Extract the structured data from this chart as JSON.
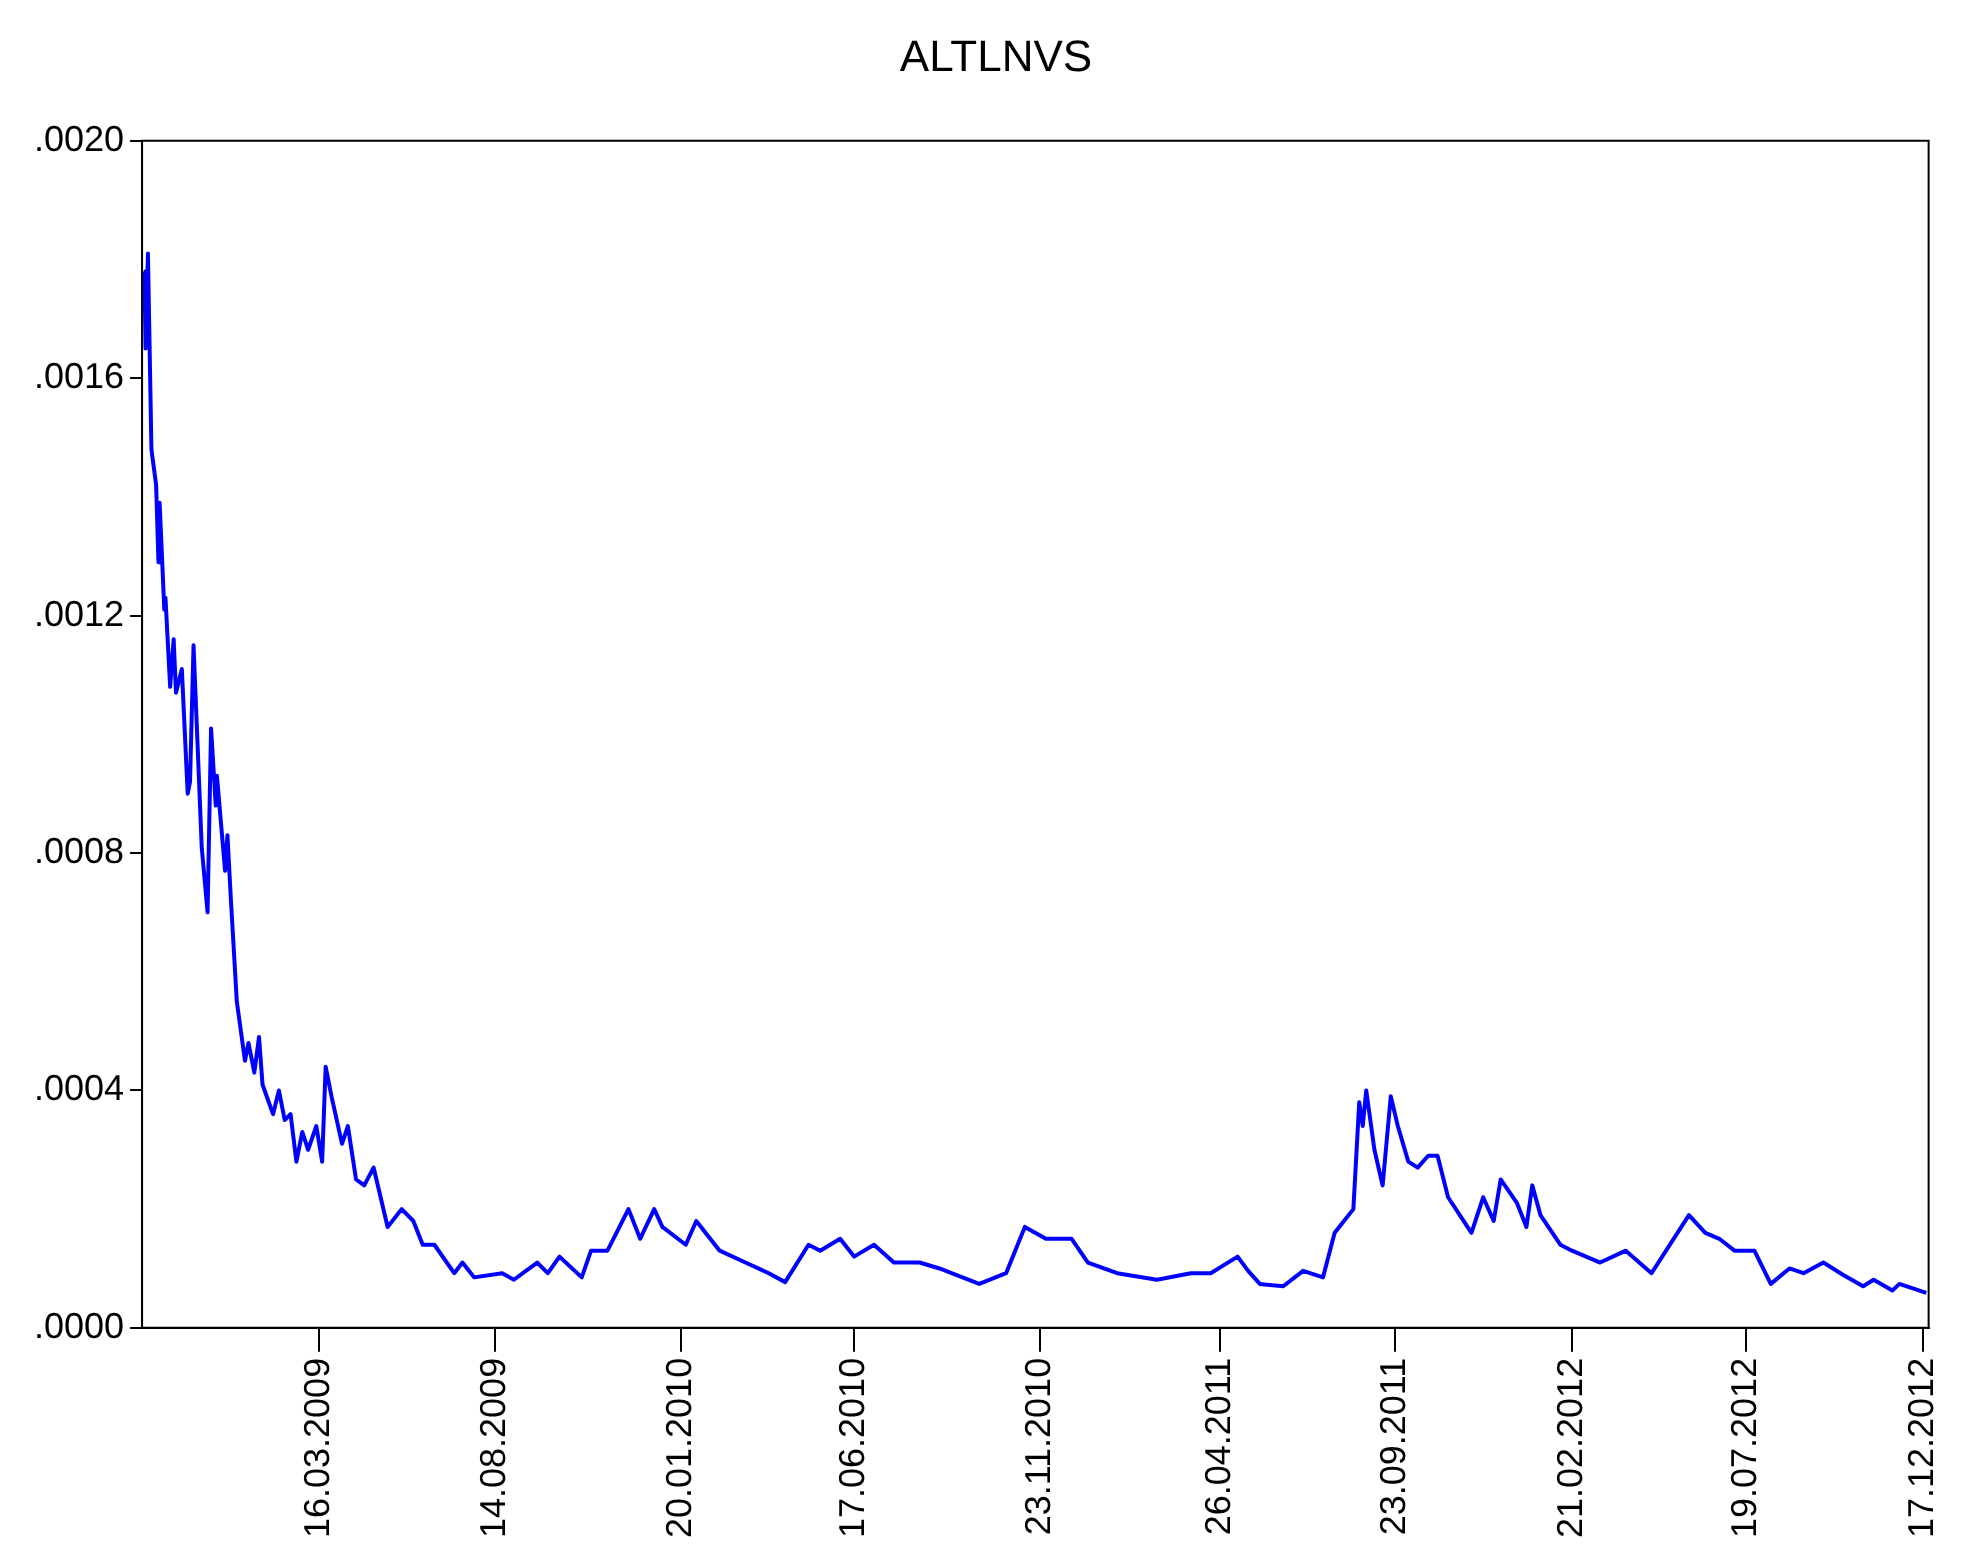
{
  "chart_data": {
    "type": "line",
    "title": "ALTLNVS",
    "xlim": [
      "2008-10-16",
      "2012-12-22"
    ],
    "xticks": [
      {
        "value": "2009-03-16",
        "label": "16.03.2009"
      },
      {
        "value": "2009-08-14",
        "label": "14.08.2009"
      },
      {
        "value": "2010-01-20",
        "label": "20.01.2010"
      },
      {
        "value": "2010-06-17",
        "label": "17.06.2010"
      },
      {
        "value": "2010-11-23",
        "label": "23.11.2010"
      },
      {
        "value": "2011-04-26",
        "label": "26.04.2011"
      },
      {
        "value": "2011-09-23",
        "label": "23.09.2011"
      },
      {
        "value": "2012-02-21",
        "label": "21.02.2012"
      },
      {
        "value": "2012-07-19",
        "label": "19.07.2012"
      },
      {
        "value": "2012-12-17",
        "label": "17.12.2012"
      }
    ],
    "ylim": [
      0,
      0.002
    ],
    "yticks": [
      {
        "value": 0,
        "label": ".0000"
      },
      {
        "value": 0.0004,
        "label": ".0004"
      },
      {
        "value": 0.0008,
        "label": ".0008"
      },
      {
        "value": 0.0012,
        "label": ".0012"
      },
      {
        "value": 0.0016,
        "label": ".0016"
      },
      {
        "value": 0.002,
        "label": ".0020"
      }
    ],
    "grid": false,
    "legend": false,
    "marker": "none",
    "line_style": "solid",
    "series": [
      {
        "color": "#0000ff",
        "x": [
          "2008-10-18",
          "2008-10-19",
          "2008-10-21",
          "2008-10-24",
          "2008-10-28",
          "2008-10-30",
          "2008-10-31",
          "2008-11-04",
          "2008-11-05",
          "2008-11-09",
          "2008-11-12",
          "2008-11-14",
          "2008-11-19",
          "2008-11-24",
          "2008-11-26",
          "2008-11-29",
          "2008-12-06",
          "2008-12-11",
          "2008-12-14",
          "2008-12-18",
          "2008-12-19",
          "2008-12-26",
          "2008-12-28",
          "2008-12-31",
          "2009-01-05",
          "2009-01-12",
          "2009-01-15",
          "2009-01-20",
          "2009-01-24",
          "2009-01-27",
          "2009-02-05",
          "2009-02-10",
          "2009-02-15",
          "2009-02-20",
          "2009-02-25",
          "2009-03-02",
          "2009-03-07",
          "2009-03-14",
          "2009-03-19",
          "2009-03-22",
          "2009-03-27",
          "2009-04-05",
          "2009-04-10",
          "2009-04-17",
          "2009-04-24",
          "2009-05-02",
          "2009-05-14",
          "2009-05-26",
          "2009-06-05",
          "2009-06-13",
          "2009-06-23",
          "2009-07-10",
          "2009-07-17",
          "2009-07-27",
          "2009-08-20",
          "2009-08-30",
          "2009-09-19",
          "2009-09-28",
          "2009-10-08",
          "2009-10-27",
          "2009-11-04",
          "2009-11-18",
          "2009-12-06",
          "2009-12-16",
          "2009-12-28",
          "2010-01-04",
          "2010-01-24",
          "2010-02-02",
          "2010-02-22",
          "2010-03-16",
          "2010-04-05",
          "2010-04-19",
          "2010-05-09",
          "2010-05-19",
          "2010-06-05",
          "2010-06-17",
          "2010-07-04",
          "2010-07-21",
          "2010-08-12",
          "2010-08-29",
          "2010-10-02",
          "2010-10-25",
          "2010-11-10",
          "2010-11-28",
          "2010-12-20",
          "2011-01-03",
          "2011-01-28",
          "2011-03-03",
          "2011-04-01",
          "2011-04-18",
          "2011-05-11",
          "2011-05-20",
          "2011-05-30",
          "2011-06-19",
          "2011-07-06",
          "2011-07-23",
          "2011-08-02",
          "2011-08-18",
          "2011-08-23",
          "2011-08-26",
          "2011-08-29",
          "2011-09-05",
          "2011-09-12",
          "2011-09-19",
          "2011-09-25",
          "2011-10-04",
          "2011-10-12",
          "2011-10-21",
          "2011-10-29",
          "2011-11-07",
          "2011-11-27",
          "2011-12-07",
          "2011-12-16",
          "2011-12-22",
          "2012-01-05",
          "2012-01-13",
          "2012-01-18",
          "2012-01-25",
          "2012-02-11",
          "2012-02-21",
          "2012-03-16",
          "2012-04-07",
          "2012-04-29",
          "2012-05-31",
          "2012-06-14",
          "2012-06-26",
          "2012-07-09",
          "2012-07-26",
          "2012-08-09",
          "2012-08-25",
          "2012-09-06",
          "2012-09-23",
          "2012-10-10",
          "2012-10-27",
          "2012-11-05",
          "2012-11-21",
          "2012-11-27",
          "2012-12-20"
        ],
        "values": [
          0.00178,
          0.00165,
          0.00181,
          0.00148,
          0.00142,
          0.00129,
          0.00139,
          0.00121,
          0.00123,
          0.00108,
          0.00116,
          0.00107,
          0.00111,
          0.0009,
          0.00092,
          0.00115,
          0.00081,
          0.0007,
          0.00101,
          0.00088,
          0.00093,
          0.00077,
          0.00083,
          0.00072,
          0.00055,
          0.00045,
          0.00048,
          0.00043,
          0.00049,
          0.00041,
          0.00036,
          0.0004,
          0.00035,
          0.00036,
          0.00028,
          0.00033,
          0.0003,
          0.00034,
          0.00028,
          0.00044,
          0.00039,
          0.00031,
          0.00034,
          0.00025,
          0.00024,
          0.00027,
          0.00017,
          0.0002,
          0.00018,
          0.00014,
          0.00014,
          9.2e-05,
          0.00011,
          8.5e-05,
          9.2e-05,
          8.1e-05,
          0.00011,
          9.2e-05,
          0.00012,
          8.5e-05,
          0.00013,
          0.00013,
          0.0002,
          0.00015,
          0.0002,
          0.00017,
          0.00014,
          0.00018,
          0.00013,
          0.00011,
          9.2e-05,
          7.7e-05,
          0.00014,
          0.00013,
          0.00015,
          0.00012,
          0.00014,
          0.00011,
          0.00011,
          0.0001,
          7.4e-05,
          9.2e-05,
          0.00017,
          0.00015,
          0.00015,
          0.00011,
          9.2e-05,
          8.1e-05,
          9.2e-05,
          9.2e-05,
          0.00012,
          9.6e-05,
          7.4e-05,
          7e-05,
          9.6e-05,
          8.5e-05,
          0.00016,
          0.0002,
          0.00038,
          0.00034,
          0.0004,
          0.0003,
          0.00024,
          0.00039,
          0.00034,
          0.00028,
          0.00027,
          0.00029,
          0.00029,
          0.00022,
          0.00016,
          0.00022,
          0.00018,
          0.00025,
          0.00021,
          0.00017,
          0.00024,
          0.00019,
          0.00014,
          0.00013,
          0.00011,
          0.00013,
          9.2e-05,
          0.00019,
          0.00016,
          0.00015,
          0.00013,
          0.00013,
          7.4e-05,
          0.0001,
          9.2e-05,
          0.00011,
          8.9e-05,
          7e-05,
          8.1e-05,
          6.3e-05,
          7.4e-05,
          5.9e-05
        ]
      }
    ]
  }
}
